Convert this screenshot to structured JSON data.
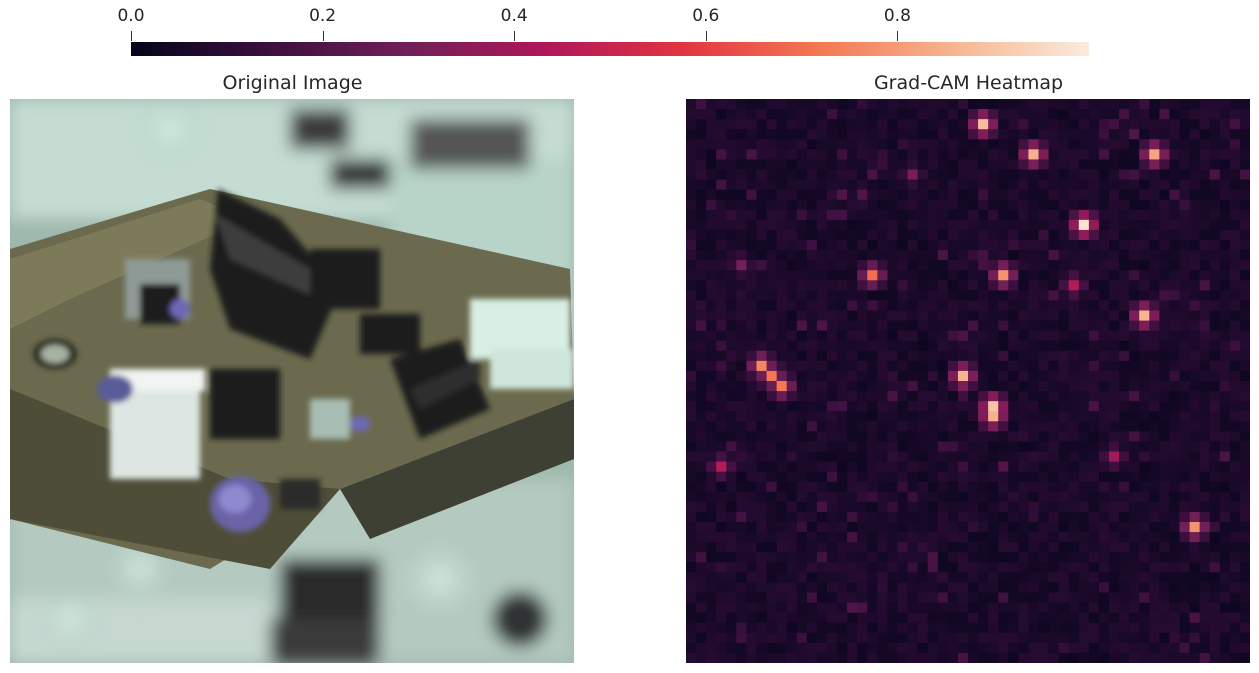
{
  "colorbar": {
    "colormap": "rocket",
    "range": [
      0.0,
      1.0
    ],
    "ticks": [
      {
        "value": 0.0,
        "label": "0.0"
      },
      {
        "value": 0.2,
        "label": "0.2"
      },
      {
        "value": 0.4,
        "label": "0.4"
      },
      {
        "value": 0.6,
        "label": "0.6"
      },
      {
        "value": 0.8,
        "label": "0.8"
      }
    ],
    "stops": [
      "#03051a",
      "#3b0f3e",
      "#701f57",
      "#ad1759",
      "#e13342",
      "#f37651",
      "#f6b48f",
      "#faebdd"
    ]
  },
  "panels": {
    "original": {
      "title": "Original Image"
    },
    "heatmap": {
      "title": "Grad-CAM Heatmap"
    }
  },
  "chart_data": {
    "type": "heatmap",
    "title": "Grad-CAM Heatmap",
    "grid": [
      56,
      56
    ],
    "value_range": [
      0.0,
      1.0
    ],
    "background_value": 0.03,
    "hotspots": [
      {
        "col": 29,
        "row": 2,
        "value": 0.88
      },
      {
        "col": 34,
        "row": 5,
        "value": 0.85
      },
      {
        "col": 46,
        "row": 5,
        "value": 0.82
      },
      {
        "col": 39,
        "row": 12,
        "value": 0.98
      },
      {
        "col": 18,
        "row": 17,
        "value": 0.7
      },
      {
        "col": 31,
        "row": 17,
        "value": 0.78
      },
      {
        "col": 38,
        "row": 18,
        "value": 0.45
      },
      {
        "col": 45,
        "row": 21,
        "value": 0.86
      },
      {
        "col": 7,
        "row": 26,
        "value": 0.75
      },
      {
        "col": 8,
        "row": 27,
        "value": 0.72
      },
      {
        "col": 9,
        "row": 28,
        "value": 0.72
      },
      {
        "col": 27,
        "row": 27,
        "value": 0.86
      },
      {
        "col": 30,
        "row": 30,
        "value": 0.9
      },
      {
        "col": 30,
        "row": 31,
        "value": 0.85
      },
      {
        "col": 3,
        "row": 36,
        "value": 0.45
      },
      {
        "col": 42,
        "row": 35,
        "value": 0.4
      },
      {
        "col": 50,
        "row": 42,
        "value": 0.78
      },
      {
        "col": 22,
        "row": 7,
        "value": 0.3
      },
      {
        "col": 5,
        "row": 16,
        "value": 0.3
      },
      {
        "col": 17,
        "row": 9,
        "value": 0.2
      }
    ]
  }
}
